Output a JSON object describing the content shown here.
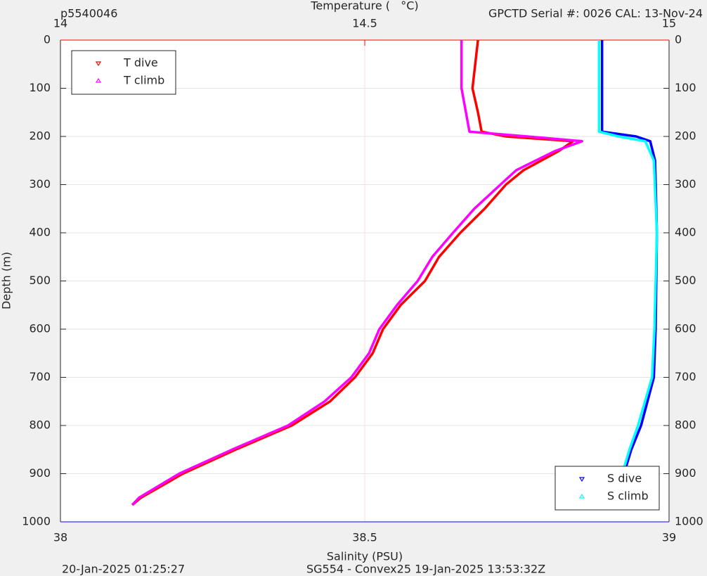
{
  "chart_data": {
    "type": "line",
    "title": "p5540046",
    "subtitle": "GPCTD Serial #: 0026 CAL: 13-Nov-24",
    "x_label": "Salinity (PSU)",
    "x2_label": "Temperature (   °C)",
    "y_label": "Depth (m)",
    "footer": [
      "20-Jan-2025 01:25:27",
      "SG554 - Convex25 19-Jan-2025 13:53:32Z"
    ],
    "xlim": [
      38,
      39
    ],
    "xticks": [
      38,
      38.5,
      39
    ],
    "x_color": "#0000ff",
    "x2lim": [
      14,
      15
    ],
    "x2ticks": [
      14,
      14.5,
      15
    ],
    "x2_color": "#ff0000",
    "ylim": [
      0,
      1000
    ],
    "yticks": [
      0,
      100,
      200,
      300,
      400,
      500,
      600,
      700,
      800,
      900,
      1000
    ],
    "y_reversed": true,
    "grid": true,
    "series": [
      {
        "name": "T dive",
        "color": "#ff0000",
        "axis": "x2",
        "marker": "down",
        "legend": "northwest",
        "depth": [
          0,
          100,
          150,
          190,
          200,
          210,
          230,
          270,
          300,
          350,
          400,
          450,
          500,
          550,
          600,
          650,
          700,
          750,
          800,
          850,
          900,
          950,
          965
        ],
        "values": [
          14.686,
          14.677,
          14.686,
          14.692,
          14.732,
          14.842,
          14.819,
          14.761,
          14.732,
          14.697,
          14.657,
          14.622,
          14.599,
          14.559,
          14.53,
          14.513,
          14.484,
          14.443,
          14.38,
          14.288,
          14.201,
          14.132,
          14.118
        ]
      },
      {
        "name": "T climb",
        "color": "#ff00ff",
        "axis": "x2",
        "marker": "up",
        "legend": "northwest",
        "depth": [
          0,
          100,
          190,
          200,
          210,
          230,
          270,
          300,
          350,
          400,
          450,
          500,
          550,
          600,
          650,
          700,
          750,
          800,
          850,
          900,
          950,
          965
        ],
        "values": [
          14.659,
          14.659,
          14.672,
          14.767,
          14.857,
          14.813,
          14.749,
          14.723,
          14.68,
          14.645,
          14.611,
          14.587,
          14.553,
          14.524,
          14.507,
          14.478,
          14.434,
          14.374,
          14.282,
          14.195,
          14.129,
          14.118
        ]
      },
      {
        "name": "S dive",
        "color": "#0000ff",
        "axis": "x",
        "marker": "down",
        "legend": "southeast",
        "depth": [
          0,
          190,
          200,
          210,
          250,
          400,
          600,
          700,
          800,
          850,
          900,
          965
        ],
        "values": [
          38.89,
          38.89,
          38.946,
          38.969,
          38.977,
          38.98,
          38.978,
          38.975,
          38.954,
          38.938,
          38.926,
          38.915
        ]
      },
      {
        "name": "S climb",
        "color": "#00ffff",
        "axis": "x",
        "marker": "up",
        "legend": "southeast",
        "depth": [
          0,
          190,
          200,
          210,
          250,
          400,
          600,
          700,
          800,
          850,
          900,
          965
        ],
        "values": [
          38.885,
          38.885,
          38.917,
          38.961,
          38.975,
          38.98,
          38.976,
          38.972,
          38.949,
          38.935,
          38.923,
          38.912
        ]
      }
    ]
  }
}
